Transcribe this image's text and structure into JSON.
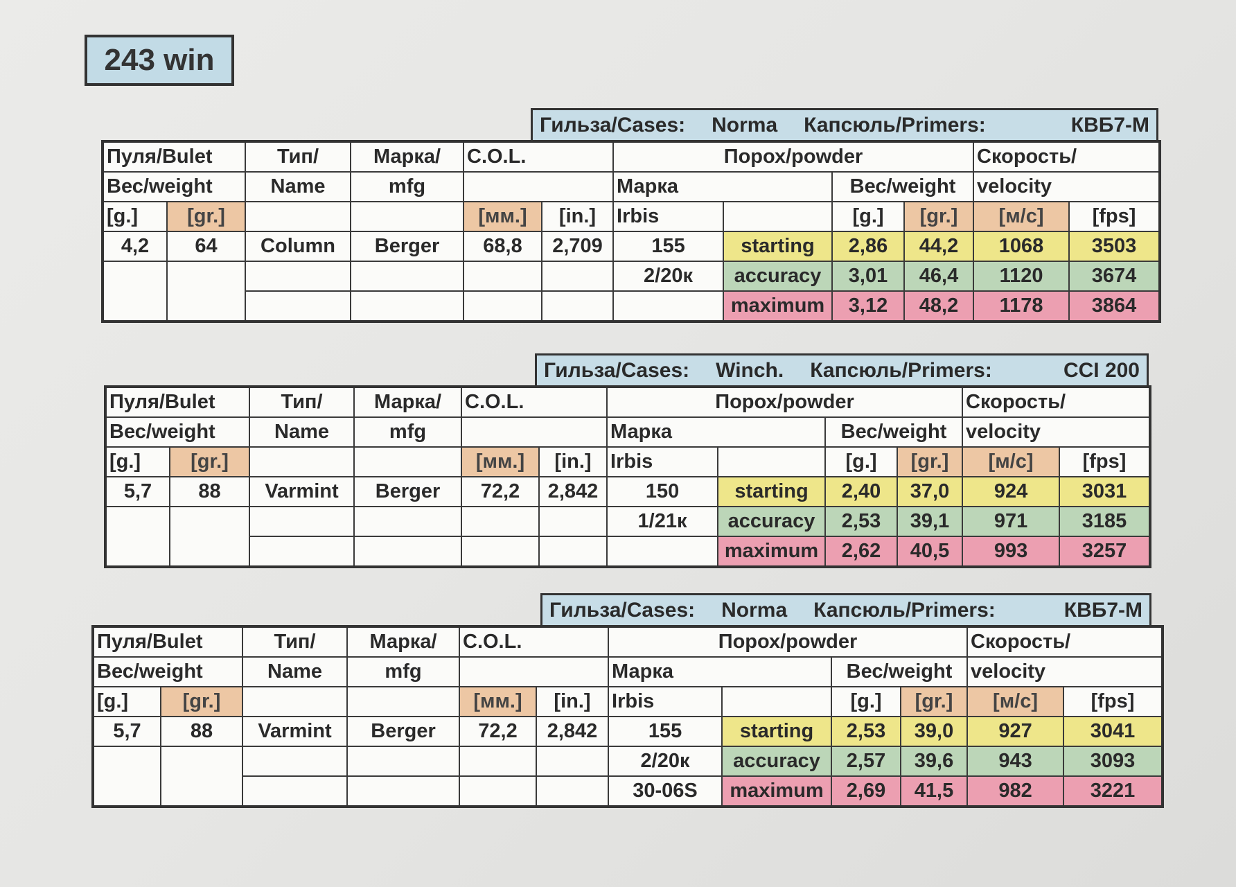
{
  "title": "243 win",
  "headers": {
    "bullet": "Пуля/Bulet",
    "weight": "Вес/weight",
    "type": "Тип/",
    "name": "Name",
    "brand": "Марка/",
    "mfg": "mfg",
    "col": "C.O.L.",
    "powder": "Порох/powder",
    "marka": "Марка",
    "weight2": "Вес/weight",
    "speed": "Скорость/",
    "velocity": "velocity",
    "g": "[g.]",
    "gr": "[gr.]",
    "mm": "[мм.]",
    "in": "[in.]",
    "ms": "[м/с]",
    "fps": "[fps]",
    "cases_label": "Гильза/Cases:",
    "primers_label": "Капсюль/Primers:"
  },
  "loads": [
    {
      "cases": "Norma",
      "primers": "КВБ7-М",
      "bullet_g": "4,2",
      "bullet_gr": "64",
      "type": "Column",
      "mfg": "Berger",
      "col_mm": "68,8",
      "col_in": "2,709",
      "powder_brand": "Irbis",
      "powder_line2": "155",
      "powder_line3": "2/20к",
      "powder_line4": "",
      "rows": [
        {
          "label": "starting",
          "g": "2,86",
          "gr": "44,2",
          "ms": "1068",
          "fps": "3503"
        },
        {
          "label": "accuracy",
          "g": "3,01",
          "gr": "46,4",
          "ms": "1120",
          "fps": "3674"
        },
        {
          "label": "maximum",
          "g": "3,12",
          "gr": "48,2",
          "ms": "1178",
          "fps": "3864"
        }
      ]
    },
    {
      "cases": "Winch.",
      "primers": "CCI 200",
      "bullet_g": "5,7",
      "bullet_gr": "88",
      "type": "Varmint",
      "mfg": "Berger",
      "col_mm": "72,2",
      "col_in": "2,842",
      "powder_brand": "Irbis",
      "powder_line2": "150",
      "powder_line3": "1/21к",
      "powder_line4": "",
      "rows": [
        {
          "label": "starting",
          "g": "2,40",
          "gr": "37,0",
          "ms": "924",
          "fps": "3031"
        },
        {
          "label": "accuracy",
          "g": "2,53",
          "gr": "39,1",
          "ms": "971",
          "fps": "3185"
        },
        {
          "label": "maximum",
          "g": "2,62",
          "gr": "40,5",
          "ms": "993",
          "fps": "3257"
        }
      ]
    },
    {
      "cases": "Norma",
      "primers": "КВБ7-М",
      "bullet_g": "5,7",
      "bullet_gr": "88",
      "type": "Varmint",
      "mfg": "Berger",
      "col_mm": "72,2",
      "col_in": "2,842",
      "powder_brand": "Irbis",
      "powder_line2": "155",
      "powder_line3": "2/20к",
      "powder_line4": "30-06S",
      "rows": [
        {
          "label": "starting",
          "g": "2,53",
          "gr": "39,0",
          "ms": "927",
          "fps": "3041"
        },
        {
          "label": "accuracy",
          "g": "2,57",
          "gr": "39,6",
          "ms": "943",
          "fps": "3093"
        },
        {
          "label": "maximum",
          "g": "2,69",
          "gr": "41,5",
          "ms": "982",
          "fps": "3221"
        }
      ]
    }
  ]
}
